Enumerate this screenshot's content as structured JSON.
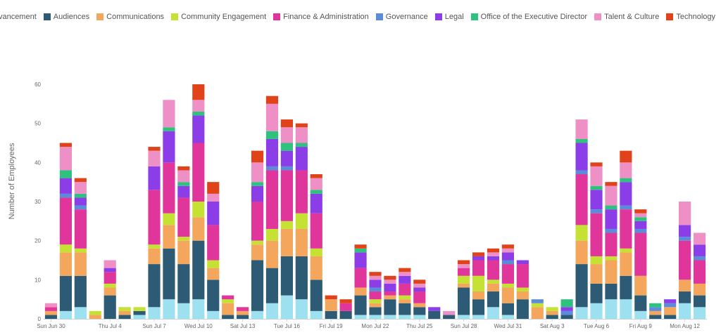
{
  "chart_data": {
    "type": "bar",
    "stacked": true,
    "ylabel": "Number of Employees",
    "ylim": [
      0,
      60
    ],
    "yticks": [
      0,
      10,
      20,
      30,
      40,
      50,
      60
    ],
    "grid": false,
    "legend_position": "top-right",
    "x_tick_labels": [
      {
        "index": 0,
        "label": "Sun Jun 30"
      },
      {
        "index": 4,
        "label": "Thu Jul 4"
      },
      {
        "index": 7,
        "label": "Sun Jul 7"
      },
      {
        "index": 10,
        "label": "Wed Jul 10"
      },
      {
        "index": 13,
        "label": "Sat Jul 13"
      },
      {
        "index": 16,
        "label": "Tue Jul 16"
      },
      {
        "index": 19,
        "label": "Fri Jul 19"
      },
      {
        "index": 22,
        "label": "Mon Jul 22"
      },
      {
        "index": 25,
        "label": "Thu Jul 25"
      },
      {
        "index": 28,
        "label": "Sun Jul 28"
      },
      {
        "index": 31,
        "label": "Wed Jul 31"
      },
      {
        "index": 34,
        "label": "Sat Aug 3"
      },
      {
        "index": 37,
        "label": "Tue Aug 6"
      },
      {
        "index": 40,
        "label": "Fri Aug 9"
      },
      {
        "index": 43,
        "label": "Mon Aug 12"
      }
    ],
    "categories": [
      "Jun 30",
      "Jul 1",
      "Jul 2",
      "Jul 3",
      "Jul 4",
      "Jul 5",
      "Jul 6",
      "Jul 7",
      "Jul 8",
      "Jul 9",
      "Jul 10",
      "Jul 11",
      "Jul 12",
      "Jul 13",
      "Jul 14",
      "Jul 15",
      "Jul 16",
      "Jul 17",
      "Jul 18",
      "Jul 19",
      "Jul 20",
      "Jul 21",
      "Jul 22",
      "Jul 23",
      "Jul 24",
      "Jul 25",
      "Jul 26",
      "Jul 27",
      "Jul 28",
      "Jul 29",
      "Jul 30",
      "Jul 31",
      "Aug 1",
      "Aug 2",
      "Aug 3",
      "Aug 4",
      "Aug 5",
      "Aug 6",
      "Aug 7",
      "Aug 8",
      "Aug 9",
      "Aug 10",
      "Aug 11",
      "Aug 12",
      "Aug 13"
    ],
    "series": [
      {
        "name": "Advancement",
        "color": "#9de0f0",
        "values": [
          0,
          2,
          3,
          0,
          0,
          0,
          1,
          3,
          5,
          4,
          5,
          2,
          0,
          0,
          2,
          4,
          6,
          5,
          2,
          0,
          0,
          1,
          1,
          1,
          1,
          1,
          0,
          0,
          1,
          1,
          3,
          1,
          0,
          0,
          0,
          0,
          3,
          4,
          5,
          5,
          2,
          0,
          0,
          4,
          3
        ]
      },
      {
        "name": "Audiences",
        "color": "#2d5b75",
        "values": [
          1,
          9,
          8,
          0,
          6,
          1,
          1,
          11,
          13,
          10,
          15,
          8,
          1,
          1,
          13,
          9,
          10,
          11,
          8,
          2,
          2,
          5,
          2,
          4,
          3,
          2,
          2,
          1,
          7,
          4,
          4,
          3,
          5,
          0,
          1,
          1,
          11,
          5,
          4,
          6,
          4,
          1,
          1,
          3,
          3
        ]
      },
      {
        "name": "Communications",
        "color": "#f4a75c",
        "values": [
          1,
          6,
          6,
          1,
          2,
          1,
          0,
          4,
          6,
          6,
          6,
          3,
          3,
          1,
          4,
          7,
          7,
          7,
          6,
          3,
          0,
          2,
          1,
          1,
          1,
          1,
          0,
          0,
          1,
          2,
          2,
          4,
          2,
          3,
          1,
          0,
          6,
          5,
          6,
          6,
          5,
          1,
          2,
          3,
          3
        ]
      },
      {
        "name": "Community Engagement",
        "color": "#c5e134",
        "values": [
          0,
          2,
          1,
          1,
          1,
          1,
          1,
          1,
          3,
          1,
          4,
          2,
          1,
          0,
          1,
          3,
          2,
          4,
          2,
          0,
          0,
          0,
          1,
          0,
          1,
          0,
          0,
          0,
          2,
          4,
          1,
          1,
          1,
          1,
          1,
          0,
          4,
          2,
          1,
          1,
          0,
          0,
          0,
          0,
          0
        ]
      },
      {
        "name": "Finance & Administration",
        "color": "#e0359a",
        "values": [
          1,
          12,
          10,
          0,
          3,
          0,
          0,
          14,
          13,
          10,
          15,
          9,
          1,
          1,
          10,
          15,
          13,
          11,
          9,
          0,
          2,
          5,
          2,
          1,
          3,
          3,
          0,
          0,
          2,
          4,
          5,
          5,
          6,
          0,
          0,
          0,
          13,
          11,
          6,
          10,
          11,
          0,
          0,
          10,
          6
        ]
      },
      {
        "name": "Governance",
        "color": "#5b8bd9",
        "values": [
          0,
          1,
          1,
          0,
          0,
          0,
          0,
          0,
          0,
          0,
          0,
          0,
          0,
          0,
          0,
          1,
          1,
          0,
          0,
          0,
          0,
          0,
          1,
          0,
          0,
          0,
          0,
          0,
          0,
          0,
          0,
          1,
          0,
          1,
          0,
          1,
          1,
          1,
          1,
          1,
          1,
          1,
          1,
          1,
          1
        ]
      },
      {
        "name": "Legal",
        "color": "#8b3de8",
        "values": [
          0,
          4,
          2,
          0,
          1,
          0,
          0,
          6,
          8,
          3,
          7,
          6,
          0,
          0,
          4,
          7,
          4,
          6,
          5,
          0,
          0,
          4,
          2,
          2,
          2,
          1,
          1,
          0,
          0,
          1,
          1,
          2,
          1,
          0,
          0,
          1,
          7,
          5,
          5,
          6,
          2,
          0,
          1,
          3,
          3
        ]
      },
      {
        "name": "Office of the Executive Director",
        "color": "#2ec27e",
        "values": [
          0,
          2,
          1,
          0,
          0,
          0,
          0,
          0,
          1,
          1,
          1,
          0,
          0,
          0,
          1,
          2,
          2,
          1,
          1,
          0,
          0,
          1,
          0,
          0,
          0,
          0,
          0,
          0,
          0,
          0,
          0,
          0,
          0,
          0,
          0,
          2,
          1,
          1,
          1,
          1,
          1,
          1,
          0,
          0,
          0
        ]
      },
      {
        "name": "Talent & Culture",
        "color": "#ee8fc6",
        "values": [
          1,
          6,
          3,
          0,
          2,
          0,
          0,
          4,
          7,
          3,
          3,
          2,
          0,
          0,
          5,
          7,
          4,
          4,
          3,
          0,
          0,
          0,
          1,
          1,
          1,
          1,
          0,
          1,
          1,
          0,
          1,
          1,
          0,
          0,
          0,
          0,
          5,
          5,
          5,
          4,
          1,
          0,
          0,
          6,
          3
        ]
      },
      {
        "name": "Technology",
        "color": "#e0431a",
        "values": [
          0,
          1,
          1,
          0,
          0,
          0,
          0,
          1,
          0,
          1,
          4,
          3,
          0,
          0,
          3,
          2,
          2,
          1,
          1,
          1,
          1,
          1,
          1,
          1,
          1,
          1,
          0,
          0,
          1,
          1,
          1,
          1,
          0,
          0,
          0,
          0,
          0,
          1,
          1,
          3,
          1,
          0,
          0,
          0,
          0
        ]
      }
    ]
  }
}
